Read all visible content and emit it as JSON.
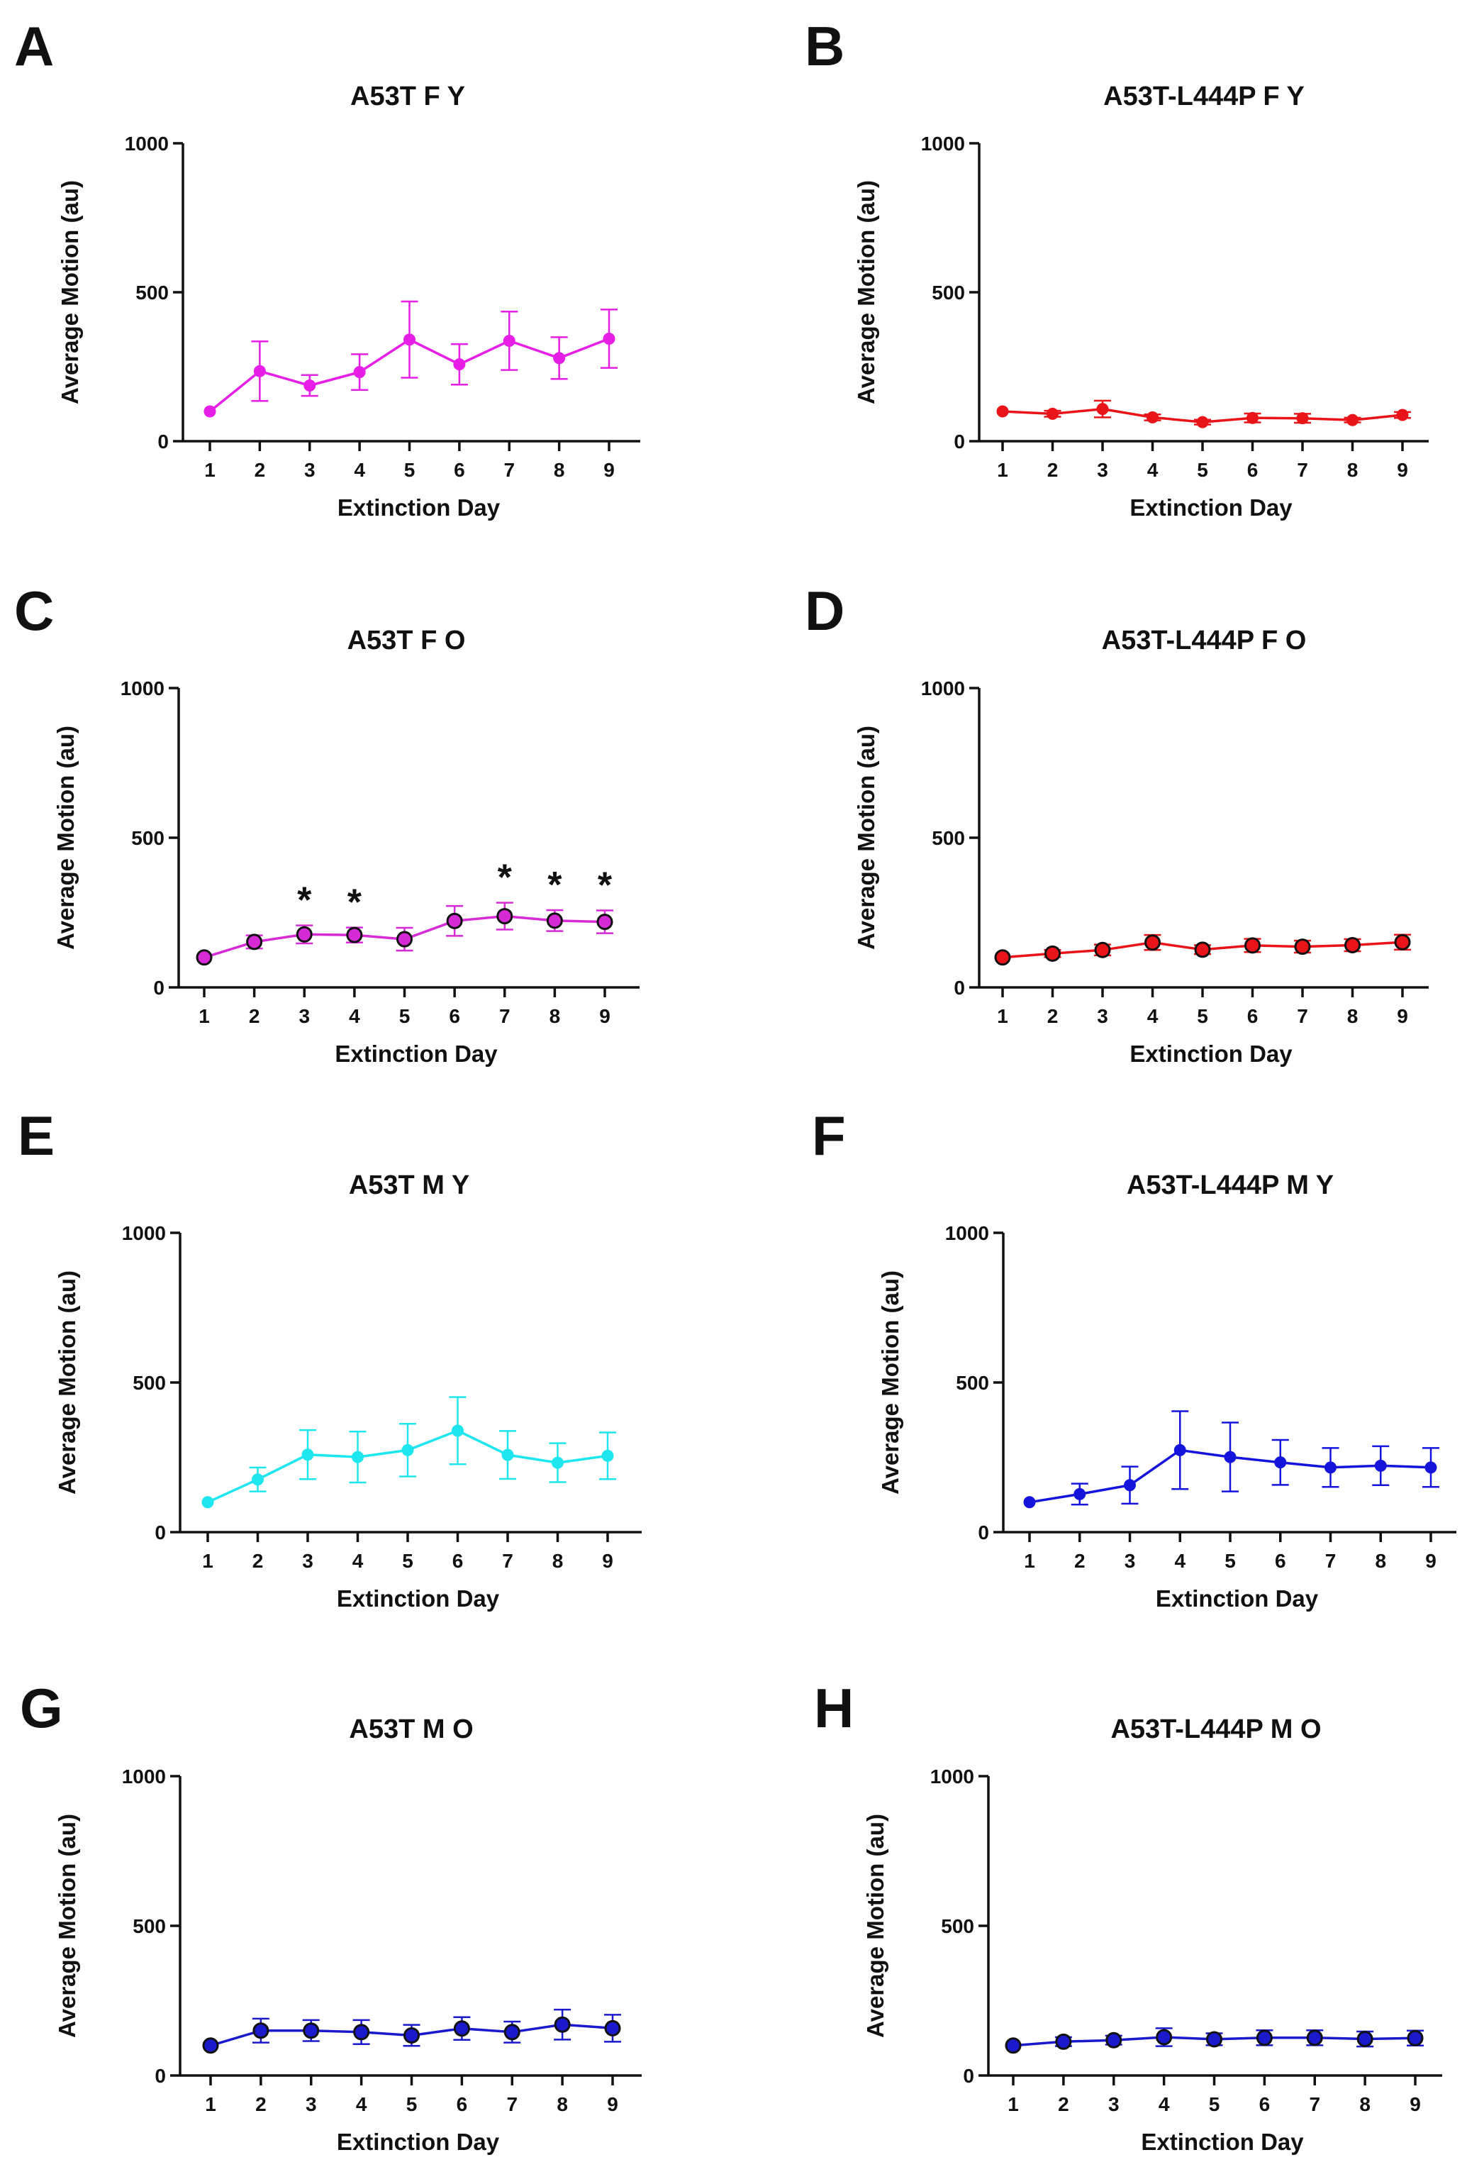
{
  "figure": {
    "panels": [
      {
        "letter": "A"
      },
      {
        "letter": "B"
      },
      {
        "letter": "C"
      },
      {
        "letter": "D"
      },
      {
        "letter": "E"
      },
      {
        "letter": "F"
      },
      {
        "letter": "G"
      },
      {
        "letter": "H"
      }
    ]
  },
  "chart_data": [
    {
      "type": "line",
      "title": "A53T F Y",
      "xlabel": "Extinction Day",
      "ylabel": "Average Motion (au)",
      "x": [
        1,
        2,
        3,
        4,
        5,
        6,
        7,
        8,
        9
      ],
      "ylim": [
        0,
        1000
      ],
      "yticks": [
        0,
        500,
        1000
      ],
      "color": "#e61ee6",
      "marker_edge": "#e61ee6",
      "marker": "small",
      "values": [
        100,
        235,
        187,
        232,
        341,
        258,
        337,
        279,
        344
      ],
      "errors": [
        0,
        100,
        35,
        60,
        128,
        68,
        98,
        70,
        98
      ],
      "significance": []
    },
    {
      "type": "line",
      "title": "A53T-L444P F Y",
      "xlabel": "Extinction Day",
      "ylabel": "Average Motion (au)",
      "x": [
        1,
        2,
        3,
        4,
        5,
        6,
        7,
        8,
        9
      ],
      "ylim": [
        0,
        1000
      ],
      "yticks": [
        0,
        500,
        1000
      ],
      "color": "#e8141a",
      "marker_edge": "#e8141a",
      "marker": "small",
      "values": [
        100,
        92,
        108,
        80,
        64,
        78,
        77,
        71,
        88
      ],
      "errors": [
        0,
        10,
        28,
        10,
        8,
        15,
        15,
        8,
        10
      ],
      "significance": []
    },
    {
      "type": "line",
      "title": "A53T F O",
      "xlabel": "Extinction Day",
      "ylabel": "Average Motion (au)",
      "x": [
        1,
        2,
        3,
        4,
        5,
        6,
        7,
        8,
        9
      ],
      "ylim": [
        0,
        1000
      ],
      "yticks": [
        0,
        500,
        1000
      ],
      "color": "#d62ad6",
      "marker_edge": "#111111",
      "marker": "large",
      "values": [
        100,
        152,
        177,
        175,
        161,
        222,
        238,
        223,
        219
      ],
      "errors": [
        0,
        22,
        30,
        25,
        38,
        50,
        45,
        35,
        38
      ],
      "significance": [
        "",
        "",
        "*",
        "*",
        "",
        "",
        "*",
        "*",
        "*"
      ]
    },
    {
      "type": "line",
      "title": "A53T-L444P F O",
      "xlabel": "Extinction Day",
      "ylabel": "Average Motion (au)",
      "x": [
        1,
        2,
        3,
        4,
        5,
        6,
        7,
        8,
        9
      ],
      "ylim": [
        0,
        1000
      ],
      "yticks": [
        0,
        500,
        1000
      ],
      "color": "#e8141a",
      "marker_edge": "#111111",
      "marker": "large",
      "values": [
        100,
        113,
        125,
        150,
        126,
        140,
        136,
        141,
        151
      ],
      "errors": [
        0,
        12,
        18,
        25,
        15,
        22,
        20,
        20,
        25
      ],
      "significance": []
    },
    {
      "type": "line",
      "title": "A53T M Y",
      "xlabel": "Extinction Day",
      "ylabel": "Average Motion (au)",
      "x": [
        1,
        2,
        3,
        4,
        5,
        6,
        7,
        8,
        9
      ],
      "ylim": [
        0,
        1000
      ],
      "yticks": [
        0,
        500,
        1000
      ],
      "color": "#1ee6ee",
      "marker_edge": "#1ee6ee",
      "marker": "small",
      "values": [
        100,
        176,
        259,
        251,
        274,
        339,
        258,
        232,
        255
      ],
      "errors": [
        0,
        40,
        82,
        85,
        88,
        112,
        80,
        65,
        78
      ],
      "significance": []
    },
    {
      "type": "line",
      "title": "A53T-L444P M Y",
      "xlabel": "Extinction Day",
      "ylabel": "Average Motion (au)",
      "x": [
        1,
        2,
        3,
        4,
        5,
        6,
        7,
        8,
        9
      ],
      "ylim": [
        0,
        1000
      ],
      "yticks": [
        0,
        500,
        1000
      ],
      "color": "#1414dc",
      "marker_edge": "#1414dc",
      "marker": "small",
      "values": [
        100,
        127,
        157,
        274,
        251,
        233,
        216,
        222,
        216
      ],
      "errors": [
        0,
        35,
        62,
        130,
        115,
        75,
        65,
        65,
        65
      ],
      "significance": []
    },
    {
      "type": "line",
      "title": "A53T M O",
      "xlabel": "Extinction Day",
      "ylabel": "Average Motion (au)",
      "x": [
        1,
        2,
        3,
        4,
        5,
        6,
        7,
        8,
        9
      ],
      "ylim": [
        0,
        1000
      ],
      "yticks": [
        0,
        500,
        1000
      ],
      "color": "#1a1acc",
      "marker_edge": "#111111",
      "marker": "large",
      "values": [
        100,
        150,
        150,
        145,
        134,
        157,
        145,
        170,
        158
      ],
      "errors": [
        0,
        40,
        35,
        40,
        35,
        38,
        35,
        50,
        45
      ],
      "significance": []
    },
    {
      "type": "line",
      "title": "A53T-L444P M O",
      "xlabel": "Extinction Day",
      "ylabel": "Average Motion (au)",
      "x": [
        1,
        2,
        3,
        4,
        5,
        6,
        7,
        8,
        9
      ],
      "ylim": [
        0,
        1000
      ],
      "yticks": [
        0,
        500,
        1000
      ],
      "color": "#1a1acc",
      "marker_edge": "#111111",
      "marker": "large",
      "values": [
        100,
        113,
        118,
        128,
        121,
        126,
        126,
        122,
        125
      ],
      "errors": [
        0,
        15,
        15,
        30,
        20,
        25,
        25,
        25,
        25
      ],
      "significance": []
    }
  ]
}
